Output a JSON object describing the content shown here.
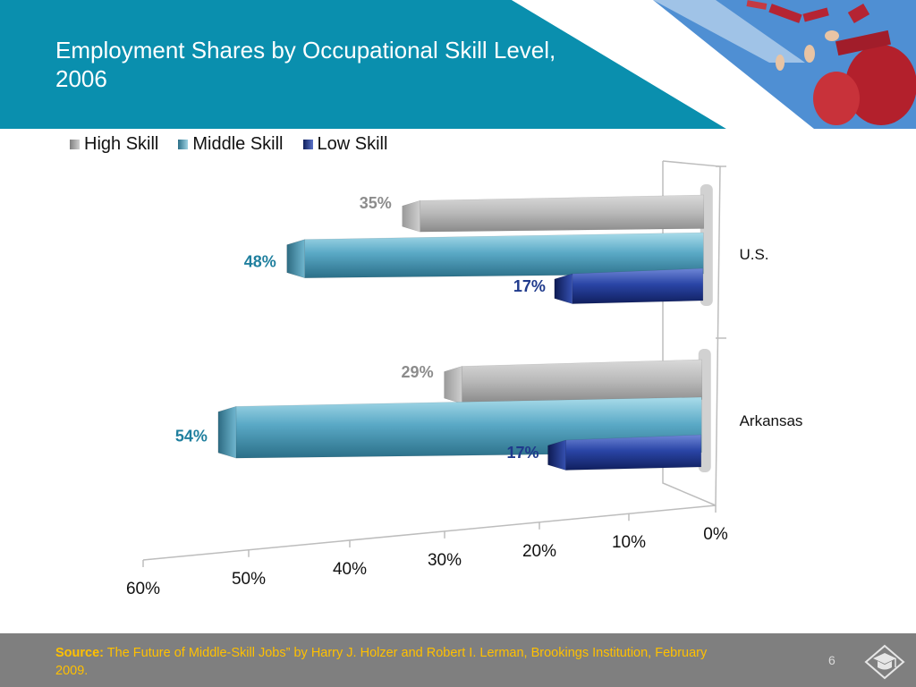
{
  "slide": {
    "title": "Employment Shares by Occupational Skill Level, 2006",
    "page_number": "6",
    "source_label": "Source:",
    "source_text": " The Future of Middle-Skill Jobs” by Harry J. Holzer and Robert I. Lerman, Brookings Institution, February 2009.",
    "header_color": "#0a8fae",
    "footer_color": "#7f7f7f",
    "source_color": "#ffc000",
    "footer_icon": "graduation-cap-icon",
    "header_image": "graduation-caps-photo"
  },
  "chart_data": {
    "type": "bar",
    "orientation": "horizontal",
    "title": "",
    "categories": [
      "U.S.",
      "Arkansas"
    ],
    "series": [
      {
        "name": "High Skill",
        "color": "#a6a6a6",
        "label_color": "#8c8c8c",
        "values": [
          35,
          29
        ]
      },
      {
        "name": "Middle Skill",
        "color": "#4a97b4",
        "label_color": "#1f7f9e",
        "values": [
          48,
          54
        ]
      },
      {
        "name": "Low Skill",
        "color": "#1f3a8c",
        "label_color": "#1f3a8c",
        "values": [
          17,
          17
        ]
      }
    ],
    "data_labels": [
      [
        "35%",
        "29%"
      ],
      [
        "48%",
        "54%"
      ],
      [
        "17%",
        "17%"
      ]
    ],
    "x_axis": {
      "ticks": [
        "0%",
        "10%",
        "20%",
        "30%",
        "40%",
        "50%",
        "60%"
      ],
      "min": 0,
      "max": 60,
      "reversed": true
    },
    "legend_position": "top-left",
    "grid": false,
    "three_d": true
  }
}
